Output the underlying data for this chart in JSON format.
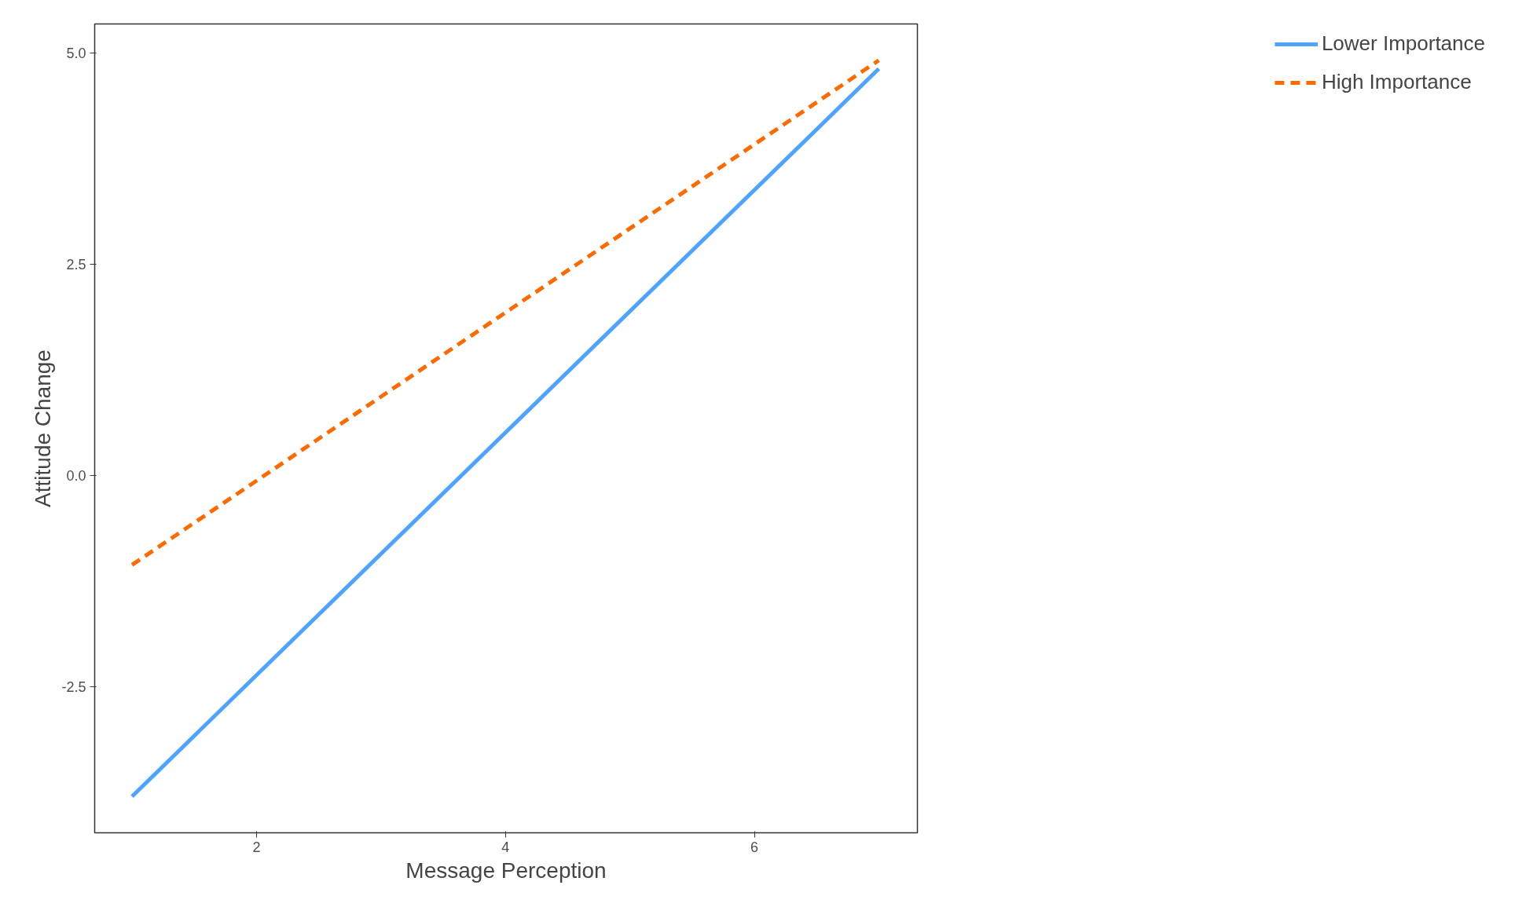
{
  "chart_data": {
    "type": "line",
    "xlabel": "Message Perception",
    "ylabel": "Attitude Change",
    "x": [
      1,
      7
    ],
    "series": [
      {
        "name": "Lower Importance",
        "color": "#4da3ff",
        "values": [
          -3.8,
          4.81
        ],
        "line_style": "solid"
      },
      {
        "name": "High Importance",
        "color": "#ff6a00",
        "values": [
          -1.06,
          4.91
        ],
        "line_style": "dashed"
      }
    ],
    "xlim": [
      0.7,
      7.31
    ],
    "ylim": [
      -4.23,
      5.34
    ],
    "xticks": [
      2,
      4,
      6
    ],
    "yticks": [
      {
        "value": -2.5,
        "label": "-2.5"
      },
      {
        "value": 0,
        "label": "0.0"
      },
      {
        "value": 2.5,
        "label": "2.5"
      },
      {
        "value": 5,
        "label": "5.0"
      }
    ],
    "grid": false,
    "legend": "right",
    "marker": "none"
  }
}
